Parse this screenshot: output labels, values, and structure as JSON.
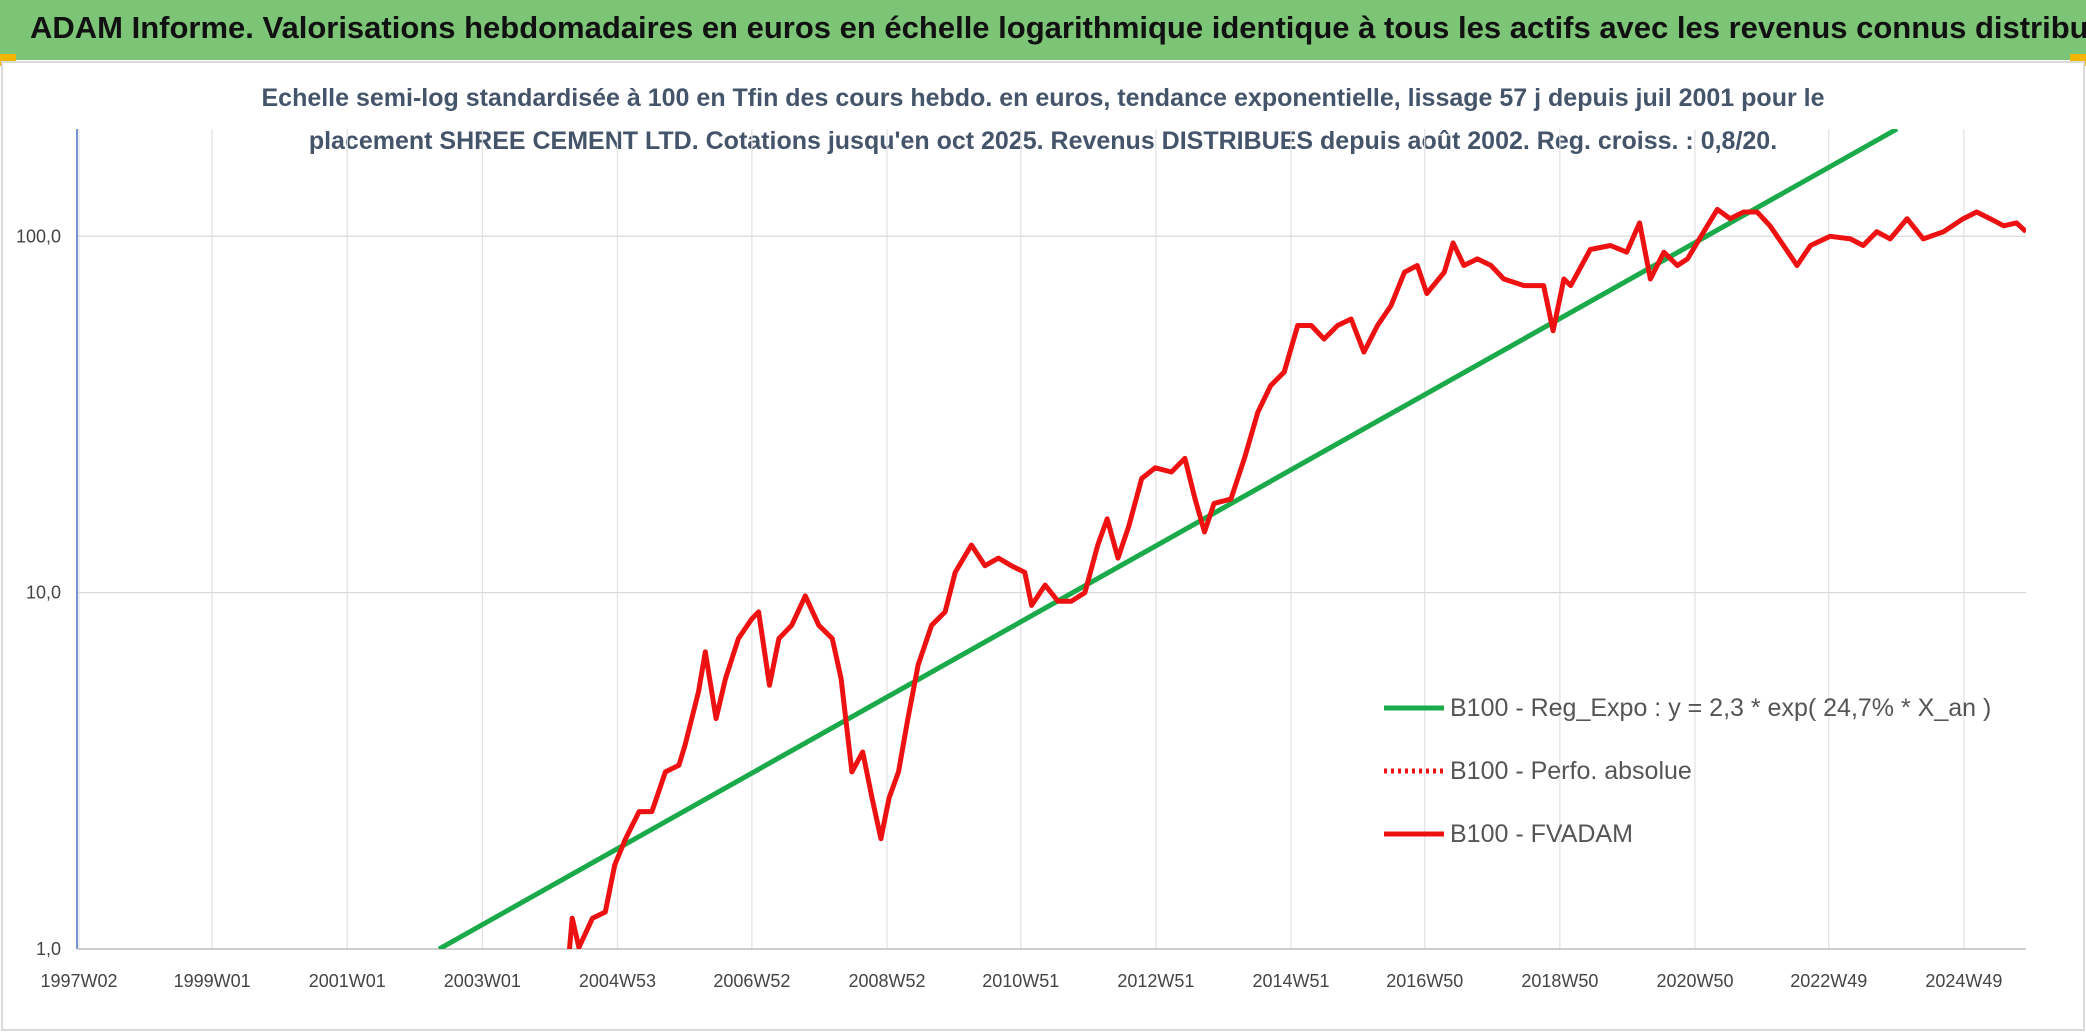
{
  "page_title": "ADAM Informe. Valorisations hebdomadaires en euros en échelle logarithmique identique à tous les actifs avec les revenus connus distribués",
  "chart_data": {
    "type": "line",
    "subtitle": [
      "Echelle semi-log standardisée à 100 en Tfin des cours hebdo. en euros, tendance exponentielle, lissage 57 j depuis juil 2001 pour le",
      "placement SHREE CEMENT LTD. Cotations jusqu'en oct 2025. Revenus DISTRIBUES depuis août 2002. Reg. croiss. : 0,8/20."
    ],
    "log_y": true,
    "grid": true,
    "xlim": [
      1997.0,
      2025.85
    ],
    "xticks": [
      {
        "value": 1997.03,
        "label": "1997W02"
      },
      {
        "value": 1999.0,
        "label": "1999W01"
      },
      {
        "value": 2001.0,
        "label": "2001W01"
      },
      {
        "value": 2003.0,
        "label": "2003W01"
      },
      {
        "value": 2005.0,
        "label": "2004W53"
      },
      {
        "value": 2006.99,
        "label": "2006W52"
      },
      {
        "value": 2008.99,
        "label": "2008W52"
      },
      {
        "value": 2010.97,
        "label": "2010W51"
      },
      {
        "value": 2012.97,
        "label": "2012W51"
      },
      {
        "value": 2014.97,
        "label": "2014W51"
      },
      {
        "value": 2016.95,
        "label": "2016W50"
      },
      {
        "value": 2018.95,
        "label": "2018W50"
      },
      {
        "value": 2020.95,
        "label": "2020W50"
      },
      {
        "value": 2022.93,
        "label": "2022W49"
      },
      {
        "value": 2024.93,
        "label": "2024W49"
      }
    ],
    "ylim": [
      1,
      200
    ],
    "yticks": [
      {
        "value": 1,
        "label": "1,0"
      },
      {
        "value": 10,
        "label": "10,0"
      },
      {
        "value": 100,
        "label": "100,0"
      }
    ],
    "legend_position": "right",
    "series": [
      {
        "name": "B100 - Reg_Expo : y = 2,3 * exp( 24,7% *  X_an )",
        "color": "#1aaa4a",
        "style": "solid",
        "x": [
          2002.36,
          2023.94
        ],
        "values": [
          1.0,
          200
        ]
      },
      {
        "name": "B100 - Perfo. absolue",
        "color": "#ee1111",
        "style": "dotted"
      },
      {
        "name": "B100 - FVADAM",
        "color": "#ee1111",
        "style": "solid",
        "x": [
          2004.29,
          2004.33,
          2004.43,
          2004.63,
          2004.82,
          2004.96,
          2005.12,
          2005.32,
          2005.51,
          2005.71,
          2005.91,
          2006.0,
          2006.2,
          2006.3,
          2006.46,
          2006.6,
          2006.79,
          2006.99,
          2007.09,
          2007.25,
          2007.39,
          2007.58,
          2007.78,
          2007.98,
          2008.18,
          2008.31,
          2008.47,
          2008.63,
          2008.77,
          2008.9,
          2009.02,
          2009.16,
          2009.3,
          2009.45,
          2009.65,
          2009.85,
          2010.0,
          2010.24,
          2010.44,
          2010.64,
          2010.83,
          2011.03,
          2011.13,
          2011.33,
          2011.52,
          2011.72,
          2011.92,
          2012.11,
          2012.25,
          2012.41,
          2012.57,
          2012.76,
          2012.96,
          2013.2,
          2013.4,
          2013.55,
          2013.69,
          2013.83,
          2014.08,
          2014.28,
          2014.48,
          2014.67,
          2014.87,
          2015.07,
          2015.27,
          2015.46,
          2015.66,
          2015.86,
          2016.05,
          2016.25,
          2016.45,
          2016.65,
          2016.84,
          2016.98,
          2017.24,
          2017.37,
          2017.53,
          2017.73,
          2017.93,
          2018.12,
          2018.42,
          2018.71,
          2018.85,
          2019.01,
          2019.11,
          2019.4,
          2019.7,
          2019.94,
          2020.13,
          2020.29,
          2020.49,
          2020.69,
          2020.84,
          2021.08,
          2021.28,
          2021.47,
          2021.67,
          2021.87,
          2022.06,
          2022.26,
          2022.46,
          2022.66,
          2022.95,
          2023.25,
          2023.44,
          2023.64,
          2023.84,
          2024.09,
          2024.33,
          2024.63,
          2024.92,
          2025.12,
          2025.32,
          2025.52,
          2025.71,
          2025.85
        ],
        "values": [
          1.0,
          1.22,
          1.01,
          1.22,
          1.27,
          1.72,
          2.04,
          2.43,
          2.43,
          3.14,
          3.28,
          3.73,
          5.27,
          6.82,
          4.43,
          5.74,
          7.43,
          8.45,
          8.83,
          5.5,
          7.43,
          8.1,
          9.79,
          8.1,
          7.43,
          5.74,
          3.14,
          3.57,
          2.65,
          2.04,
          2.65,
          3.14,
          4.43,
          6.26,
          8.1,
          8.83,
          11.4,
          13.6,
          11.9,
          12.5,
          11.9,
          11.4,
          9.21,
          10.5,
          9.46,
          9.46,
          10.0,
          13.6,
          16.1,
          12.5,
          15.4,
          20.9,
          22.4,
          21.8,
          23.8,
          18.3,
          14.8,
          17.8,
          18.3,
          23.8,
          32.1,
          38.1,
          41.6,
          56.2,
          56.2,
          51.5,
          56.2,
          58.6,
          47.3,
          56.2,
          63.9,
          79.3,
          82.8,
          69.1,
          79.3,
          95.8,
          82.8,
          86.4,
          82.8,
          75.9,
          72.7,
          72.7,
          54.3,
          75.9,
          72.7,
          91.8,
          94.2,
          90.2,
          109,
          75.9,
          90.2,
          82.8,
          86.4,
          103,
          119,
          112,
          117,
          117,
          107,
          94.2,
          82.8,
          94.2,
          100,
          98.3,
          94.2,
          103,
          98.3,
          112,
          98.3,
          103,
          112,
          117,
          112,
          107,
          109,
          103
        ]
      }
    ]
  }
}
